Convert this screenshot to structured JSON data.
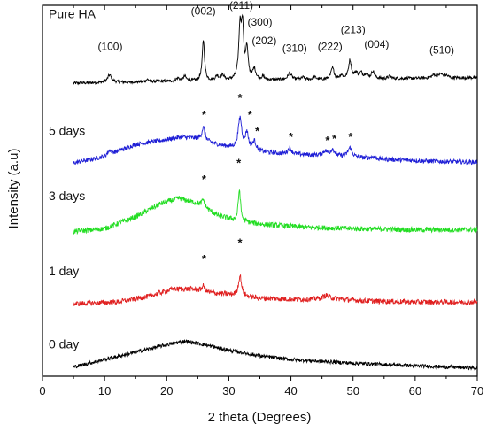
{
  "chart_data": {
    "type": "line",
    "xlabel": "2 theta (Degrees)",
    "ylabel": "Intensity (a.u)",
    "xlim": [
      0,
      70
    ],
    "x_ticks": [
      "0",
      "10",
      "20",
      "30",
      "40",
      "50",
      "60",
      "70"
    ],
    "grid": false,
    "legend": "none",
    "series": [
      {
        "name": "Pure HA",
        "color": "#000000",
        "baseline": 0.79,
        "noise": 0.004,
        "profile": [
          [
            5,
            0.0
          ],
          [
            20,
            0.005
          ],
          [
            70,
            0.015
          ]
        ],
        "peaks": [
          [
            10.8,
            0.02,
            0.4
          ],
          [
            16.9,
            0.006,
            0.3
          ],
          [
            21.8,
            0.008,
            0.3
          ],
          [
            22.9,
            0.012,
            0.3
          ],
          [
            25.9,
            0.11,
            0.22
          ],
          [
            28.1,
            0.012,
            0.3
          ],
          [
            29.0,
            0.014,
            0.3
          ],
          [
            31.8,
            0.135,
            0.25
          ],
          [
            32.2,
            0.13,
            0.22
          ],
          [
            32.9,
            0.08,
            0.25
          ],
          [
            34.1,
            0.028,
            0.3
          ],
          [
            35.5,
            0.008,
            0.3
          ],
          [
            39.8,
            0.018,
            0.35
          ],
          [
            42.0,
            0.006,
            0.3
          ],
          [
            43.8,
            0.006,
            0.3
          ],
          [
            46.7,
            0.03,
            0.3
          ],
          [
            48.1,
            0.01,
            0.3
          ],
          [
            49.5,
            0.05,
            0.28
          ],
          [
            50.5,
            0.015,
            0.3
          ],
          [
            51.3,
            0.015,
            0.3
          ],
          [
            52.1,
            0.012,
            0.3
          ],
          [
            53.2,
            0.02,
            0.3
          ],
          [
            55.9,
            0.006,
            0.3
          ],
          [
            63.0,
            0.008,
            0.4
          ],
          [
            64.1,
            0.01,
            0.4
          ],
          [
            65.0,
            0.006,
            0.4
          ]
        ]
      },
      {
        "name": "5 days",
        "color": "#1f1fd6",
        "baseline": 0.58,
        "noise": 0.006,
        "profile": [
          [
            5,
            -0.005
          ],
          [
            10,
            0.012
          ],
          [
            15,
            0.045
          ],
          [
            20,
            0.058
          ],
          [
            22.5,
            0.065
          ],
          [
            25,
            0.06
          ],
          [
            28,
            0.045
          ],
          [
            32,
            0.03
          ],
          [
            38,
            0.02
          ],
          [
            45,
            0.015
          ],
          [
            55,
            0.005
          ],
          [
            62,
            0.0
          ],
          [
            70,
            -0.003
          ]
        ],
        "peaks": [
          [
            10.8,
            0.012,
            0.4
          ],
          [
            25.9,
            0.035,
            0.3
          ],
          [
            31.8,
            0.085,
            0.35
          ],
          [
            32.9,
            0.045,
            0.3
          ],
          [
            34.1,
            0.025,
            0.35
          ],
          [
            39.8,
            0.015,
            0.4
          ],
          [
            45.5,
            0.012,
            0.4
          ],
          [
            46.7,
            0.018,
            0.4
          ],
          [
            49.5,
            0.025,
            0.4
          ],
          [
            53.2,
            0.005,
            0.4
          ]
        ]
      },
      {
        "name": "3 days",
        "color": "#22dd22",
        "baseline": 0.39,
        "noise": 0.007,
        "profile": [
          [
            5,
            0.0
          ],
          [
            10,
            0.008
          ],
          [
            15,
            0.04
          ],
          [
            19,
            0.075
          ],
          [
            22,
            0.09
          ],
          [
            25,
            0.075
          ],
          [
            28,
            0.045
          ],
          [
            31,
            0.03
          ],
          [
            35,
            0.02
          ],
          [
            42,
            0.012
          ],
          [
            50,
            0.008
          ],
          [
            60,
            0.005
          ],
          [
            70,
            0.005
          ]
        ],
        "peaks": [
          [
            25.9,
            0.02,
            0.3
          ],
          [
            31.7,
            0.085,
            0.22
          ]
        ]
      },
      {
        "name": "1 day",
        "color": "#e02020",
        "baseline": 0.195,
        "noise": 0.007,
        "profile": [
          [
            5,
            0.0
          ],
          [
            12,
            0.005
          ],
          [
            17,
            0.02
          ],
          [
            21,
            0.04
          ],
          [
            24,
            0.04
          ],
          [
            27,
            0.03
          ],
          [
            30,
            0.025
          ],
          [
            35,
            0.015
          ],
          [
            42,
            0.012
          ],
          [
            46,
            0.015
          ],
          [
            52,
            0.008
          ],
          [
            60,
            0.005
          ],
          [
            70,
            0.005
          ]
        ],
        "peaks": [
          [
            25.9,
            0.015,
            0.3
          ],
          [
            31.8,
            0.055,
            0.3
          ],
          [
            45.7,
            0.008,
            0.6
          ]
        ]
      },
      {
        "name": "0 day",
        "color": "#000000",
        "baseline": 0.025,
        "noise": 0.005,
        "profile": [
          [
            5,
            0.0
          ],
          [
            10,
            0.02
          ],
          [
            15,
            0.04
          ],
          [
            20,
            0.06
          ],
          [
            23,
            0.07
          ],
          [
            26,
            0.06
          ],
          [
            30,
            0.045
          ],
          [
            35,
            0.03
          ],
          [
            40,
            0.02
          ],
          [
            50,
            0.01
          ],
          [
            60,
            0.003
          ],
          [
            70,
            -0.003
          ]
        ],
        "peaks": []
      }
    ],
    "annotations": [
      {
        "text": "(100)",
        "x": 10.9,
        "y": 0.88
      },
      {
        "text": "(002)",
        "x": 25.9,
        "y": 0.975
      },
      {
        "text": "(211)",
        "x": 32.0,
        "y": 0.99
      },
      {
        "text": "(300)",
        "x": 35.0,
        "y": 0.945
      },
      {
        "text": "(202)",
        "x": 35.7,
        "y": 0.895
      },
      {
        "text": "(310)",
        "x": 40.6,
        "y": 0.875
      },
      {
        "text": "(222)",
        "x": 46.3,
        "y": 0.88
      },
      {
        "text": "(213)",
        "x": 50.0,
        "y": 0.925
      },
      {
        "text": "(004)",
        "x": 53.8,
        "y": 0.885
      },
      {
        "text": "(510)",
        "x": 64.3,
        "y": 0.87
      }
    ],
    "markers": [
      {
        "text": "*",
        "x": 26.0,
        "y": 0.695
      },
      {
        "text": "*",
        "x": 31.8,
        "y": 0.74
      },
      {
        "text": "*",
        "x": 33.4,
        "y": 0.695
      },
      {
        "text": "*",
        "x": 34.6,
        "y": 0.65
      },
      {
        "text": "*",
        "x": 40.0,
        "y": 0.635
      },
      {
        "text": "*",
        "x": 45.9,
        "y": 0.625
      },
      {
        "text": "*",
        "x": 47.0,
        "y": 0.63
      },
      {
        "text": "*",
        "x": 49.6,
        "y": 0.635
      },
      {
        "text": "*",
        "x": 26.0,
        "y": 0.52
      },
      {
        "text": "*",
        "x": 31.6,
        "y": 0.565
      },
      {
        "text": "*",
        "x": 26.0,
        "y": 0.305
      },
      {
        "text": "*",
        "x": 31.8,
        "y": 0.35
      }
    ],
    "series_labels": [
      {
        "text": "Pure HA",
        "x": 1.0,
        "y": 0.965
      },
      {
        "text": "5 days",
        "x": 1.0,
        "y": 0.65
      },
      {
        "text": "3 days",
        "x": 1.0,
        "y": 0.475
      },
      {
        "text": "1 day",
        "x": 1.0,
        "y": 0.272
      },
      {
        "text": "0 day",
        "x": 1.0,
        "y": 0.075
      }
    ]
  }
}
